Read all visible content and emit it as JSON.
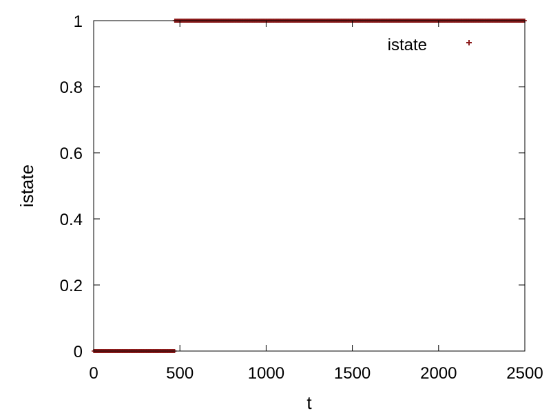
{
  "chart_data": {
    "type": "scatter",
    "title": "",
    "xlabel": "t",
    "ylabel": "istate",
    "xlim": [
      0,
      2500
    ],
    "ylim": [
      0,
      1
    ],
    "xticks": [
      0,
      500,
      1000,
      1500,
      2000,
      2500
    ],
    "yticks": [
      0,
      0.2,
      0.4,
      0.6,
      0.8,
      1
    ],
    "xtick_labels": [
      "0",
      "500",
      "1000",
      "1500",
      "2000",
      "2500"
    ],
    "ytick_labels": [
      "0",
      "0.2",
      "0.4",
      "0.6",
      "0.8",
      "1"
    ],
    "grid": false,
    "legend_position": "top-right",
    "series": [
      {
        "name": "istate",
        "color": "#8b1a1a",
        "marker": "plus",
        "segments": [
          {
            "x_start": 0,
            "x_end": 470,
            "y": 0
          },
          {
            "x_start": 470,
            "x_end": 2500,
            "y": 1
          }
        ]
      }
    ]
  }
}
